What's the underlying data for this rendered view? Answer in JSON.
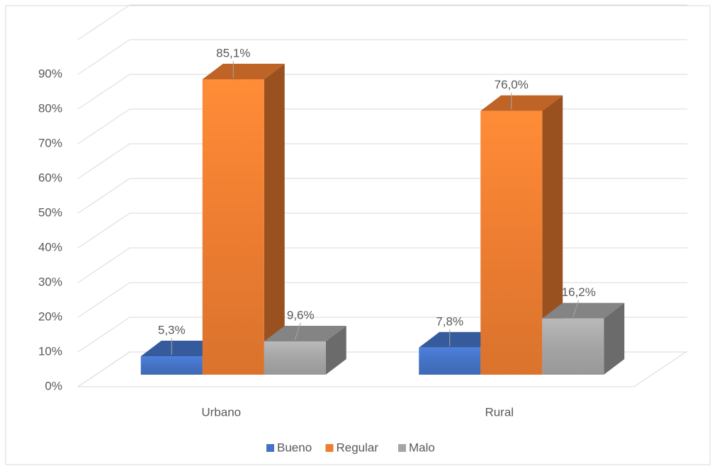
{
  "chart_data": {
    "type": "bar3d",
    "categories": [
      "Urbano",
      "Rural"
    ],
    "series": [
      {
        "name": "Bueno",
        "color": "#4472c4",
        "values": [
          5.3,
          7.8
        ],
        "value_labels": [
          "5,3%",
          "7,8%"
        ]
      },
      {
        "name": "Regular",
        "color": "#ed7d31",
        "values": [
          85.1,
          76.0
        ],
        "value_labels": [
          "85,1%",
          "76,0%"
        ]
      },
      {
        "name": "Malo",
        "color": "#a5a5a5",
        "values": [
          9.6,
          16.2
        ],
        "value_labels": [
          "9,6%",
          "16,2%"
        ]
      }
    ],
    "ylim": [
      0,
      100
    ],
    "yticks": [
      {
        "value": 0,
        "label": "0%"
      },
      {
        "value": 10,
        "label": "10%"
      },
      {
        "value": 20,
        "label": "20%"
      },
      {
        "value": 30,
        "label": "30%"
      },
      {
        "value": 40,
        "label": "40%"
      },
      {
        "value": 50,
        "label": "50%"
      },
      {
        "value": 60,
        "label": "60%"
      },
      {
        "value": 70,
        "label": "70%"
      },
      {
        "value": 80,
        "label": "80%"
      },
      {
        "value": 90,
        "label": "90%"
      }
    ],
    "grid": true,
    "legend": "bottom"
  }
}
